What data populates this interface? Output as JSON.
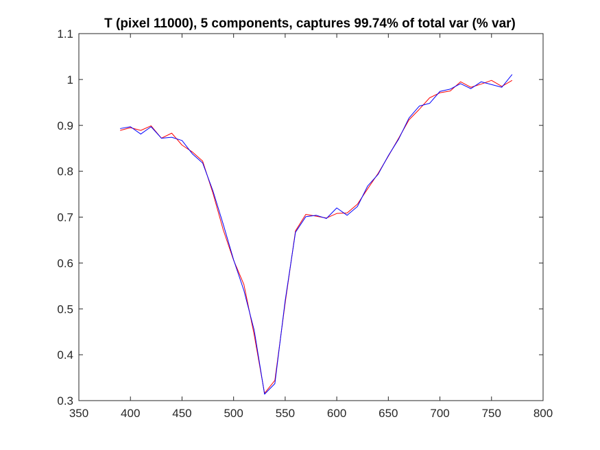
{
  "chart_data": {
    "type": "line",
    "title": "T (pixel 11000), 5 components, captures 99.74% of total var (% var)",
    "xlabel": "",
    "ylabel": "",
    "xlim": [
      350,
      800
    ],
    "ylim": [
      0.3,
      1.1
    ],
    "xticks": [
      350,
      400,
      450,
      500,
      550,
      600,
      650,
      700,
      750,
      800
    ],
    "yticks": [
      0.3,
      0.4,
      0.5,
      0.6,
      0.7,
      0.8,
      0.9,
      1.0,
      1.1
    ],
    "xtick_labels": [
      "350",
      "400",
      "450",
      "500",
      "550",
      "600",
      "650",
      "700",
      "750",
      "800"
    ],
    "ytick_labels": [
      "0.3",
      "0.4",
      "0.5",
      "0.6",
      "0.7",
      "0.8",
      "0.9",
      "1",
      "1.1"
    ],
    "grid": false,
    "legend": "none",
    "x": [
      390,
      400,
      410,
      420,
      430,
      440,
      450,
      460,
      470,
      480,
      490,
      500,
      510,
      520,
      530,
      540,
      550,
      560,
      570,
      580,
      590,
      600,
      610,
      620,
      630,
      640,
      650,
      660,
      670,
      680,
      690,
      700,
      710,
      720,
      730,
      740,
      750,
      760,
      770
    ],
    "series": [
      {
        "color": "#ff0000",
        "values": [
          0.889,
          0.895,
          0.889,
          0.899,
          0.872,
          0.883,
          0.857,
          0.842,
          0.822,
          0.752,
          0.672,
          0.606,
          0.553,
          0.443,
          0.316,
          0.344,
          0.513,
          0.67,
          0.706,
          0.702,
          0.698,
          0.708,
          0.709,
          0.728,
          0.762,
          0.795,
          0.833,
          0.872,
          0.912,
          0.935,
          0.96,
          0.971,
          0.975,
          0.995,
          0.983,
          0.99,
          0.998,
          0.985,
          0.998
        ]
      },
      {
        "color": "#0000ff",
        "values": [
          0.893,
          0.897,
          0.881,
          0.897,
          0.872,
          0.874,
          0.867,
          0.838,
          0.818,
          0.757,
          0.684,
          0.607,
          0.54,
          0.453,
          0.314,
          0.337,
          0.518,
          0.667,
          0.701,
          0.704,
          0.697,
          0.72,
          0.704,
          0.723,
          0.768,
          0.793,
          0.834,
          0.87,
          0.916,
          0.942,
          0.948,
          0.974,
          0.979,
          0.991,
          0.98,
          0.995,
          0.989,
          0.983,
          1.011
        ]
      }
    ]
  }
}
